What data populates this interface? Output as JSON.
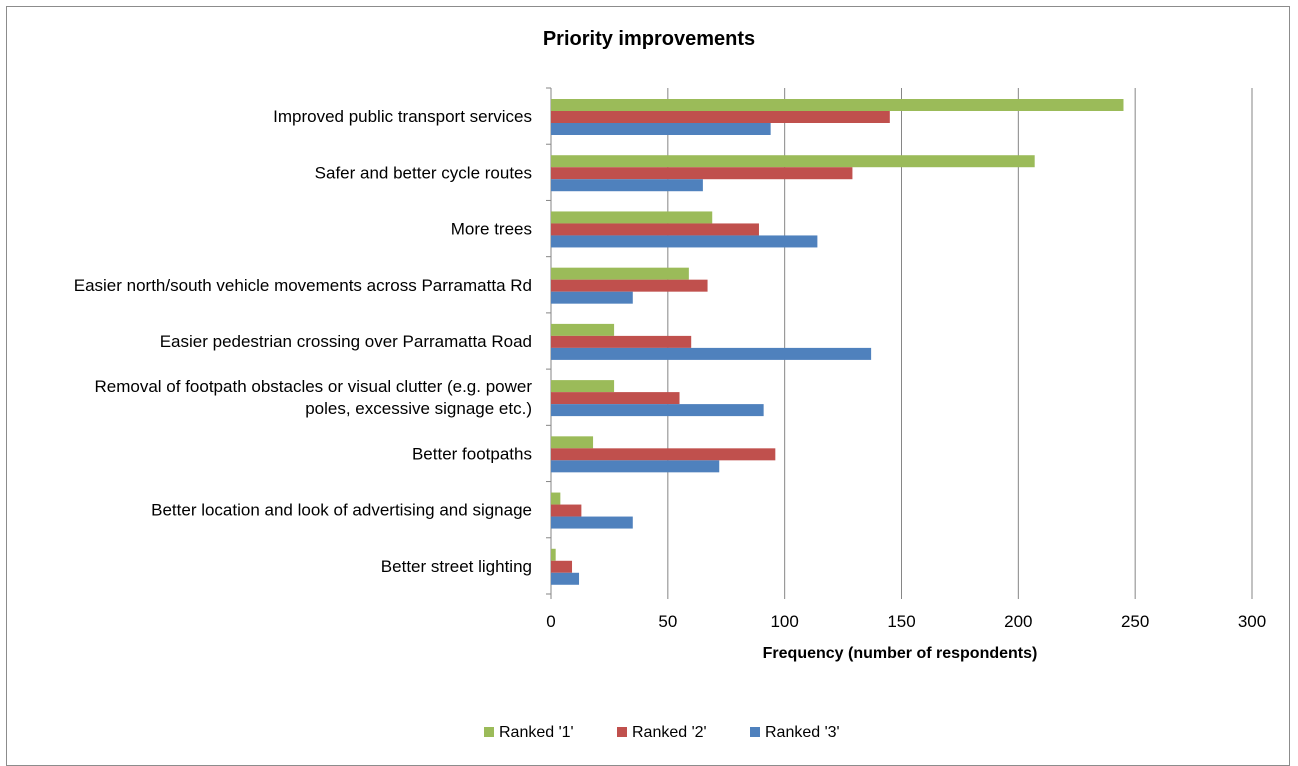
{
  "chart_data": {
    "type": "bar",
    "orientation": "horizontal",
    "title": "Priority improvements",
    "xlabel": "Frequency (number of respondents)",
    "ylabel": "",
    "xlim": [
      0,
      300
    ],
    "xticks": [
      0,
      50,
      100,
      150,
      200,
      250,
      300
    ],
    "grid": true,
    "legend_position": "bottom",
    "categories": [
      [
        "Improved public transport services"
      ],
      [
        "Safer and better cycle routes"
      ],
      [
        "More trees"
      ],
      [
        "Easier north/south vehicle movements across Parramatta Rd"
      ],
      [
        "Easier pedestrian crossing over Parramatta Road"
      ],
      [
        "Removal of footpath obstacles or visual clutter (e.g. power",
        "poles, excessive signage etc.)"
      ],
      [
        "Better footpaths"
      ],
      [
        "Better location and look of advertising and signage"
      ],
      [
        "Better street lighting"
      ]
    ],
    "series": [
      {
        "name": "Ranked '1'",
        "color": "#9bbb59",
        "values": [
          245,
          207,
          69,
          59,
          27,
          27,
          18,
          4,
          2
        ]
      },
      {
        "name": "Ranked '2'",
        "color": "#c0504d",
        "values": [
          145,
          129,
          89,
          67,
          60,
          55,
          96,
          13,
          9
        ]
      },
      {
        "name": "Ranked '3'",
        "color": "#4f81bd",
        "values": [
          94,
          65,
          114,
          35,
          137,
          91,
          72,
          35,
          12
        ]
      }
    ]
  }
}
